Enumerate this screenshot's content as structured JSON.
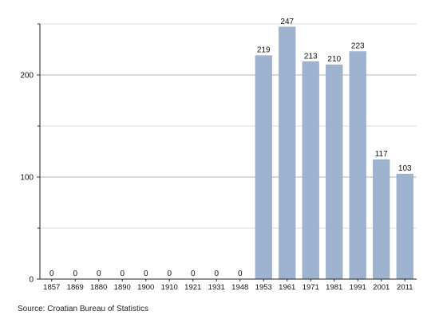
{
  "chart_data": {
    "type": "bar",
    "categories": [
      "1857",
      "1869",
      "1880",
      "1890",
      "1900",
      "1910",
      "1921",
      "1931",
      "1948",
      "1953",
      "1961",
      "1971",
      "1981",
      "1991",
      "2001",
      "2011"
    ],
    "values": [
      0,
      0,
      0,
      0,
      0,
      0,
      0,
      0,
      0,
      219,
      247,
      213,
      210,
      223,
      117,
      103
    ],
    "data_labels": [
      "0",
      "0",
      "0",
      "0",
      "0",
      "0",
      "0",
      "0",
      "0",
      "219",
      "247",
      "213",
      "210",
      "223",
      "117",
      "103"
    ],
    "title": "",
    "xlabel": "",
    "ylabel": "",
    "ylim": [
      0,
      250
    ],
    "y_ticks": [
      0,
      100,
      200
    ],
    "y_tick_labels": [
      "0",
      "100",
      "200"
    ],
    "y_minor_ticks": [
      50,
      150,
      250
    ],
    "grid": true,
    "legend": "none",
    "bar_color": "#9db3cf",
    "bar_edge_color": "#8ea6c4",
    "grid_color": "#b0b0b0",
    "minor_grid_color": "#dcdcdc",
    "source": "Source: Croatian Bureau of Statistics"
  }
}
